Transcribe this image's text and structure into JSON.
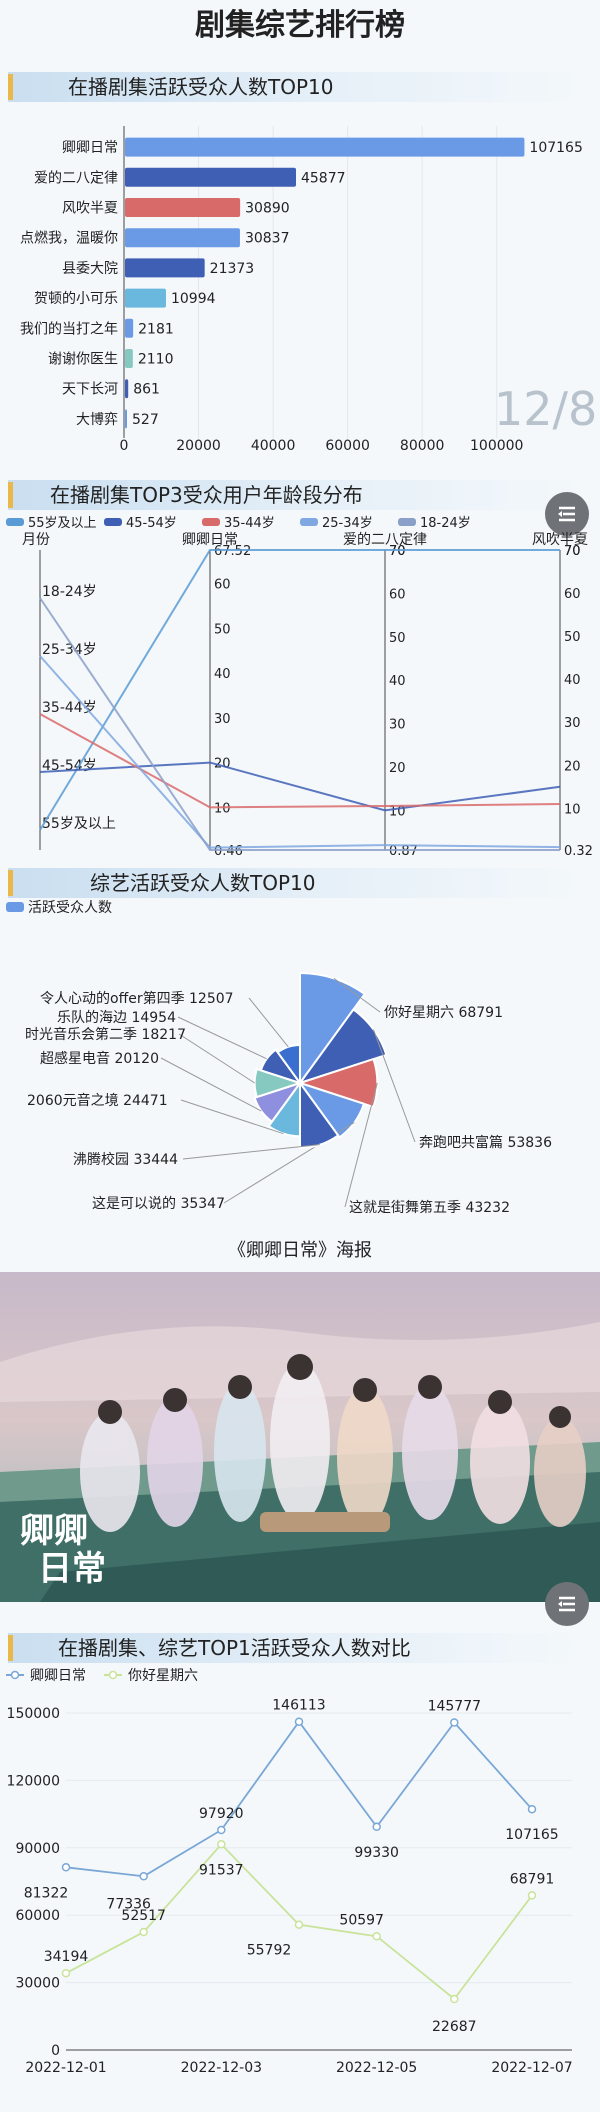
{
  "page": {
    "title": "剧集综艺排行榜",
    "date_stamp": "12/8",
    "poster_caption": "《卿卿日常》海报",
    "poster_text": "卿卿日常"
  },
  "sections": {
    "s1": "在播剧集活跃受众人数TOP10",
    "s2": "在播剧集TOP3受众用户年龄段分布",
    "s3": "综艺活跃受众人数TOP10",
    "s4": "在播剧集、综艺TOP1活跃受众人数对比"
  },
  "colors": {
    "blue": "#6a9ae6",
    "navy": "#3f5fb5",
    "red": "#d96a6a",
    "sky": "#6bb8de",
    "teal": "#86c9c1"
  },
  "icons": [
    "menu-icon"
  ],
  "chart_data": [
    {
      "type": "bar",
      "orientation": "horizontal",
      "title": "在播剧集活跃受众人数TOP10",
      "categories": [
        "卿卿日常",
        "爱的二八定律",
        "风吹半夏",
        "点燃我，温暖你",
        "县委大院",
        "贺顿的小可乐",
        "我们的当打之年",
        "谢谢你医生",
        "天下长河",
        "大博弈"
      ],
      "values": [
        107165,
        45877,
        30890,
        30837,
        21373,
        10994,
        2181,
        2110,
        861,
        527
      ],
      "bar_colors": [
        "#6a9ae6",
        "#3f5fb5",
        "#d96a6a",
        "#6a9ae6",
        "#3f5fb5",
        "#6bb8de",
        "#6a9ae6",
        "#86c9c1",
        "#3f5fb5",
        "#6a9ae6"
      ],
      "x_ticks": [
        0,
        20000,
        40000,
        60000,
        80000,
        100000
      ],
      "xlim": [
        0,
        110000
      ]
    },
    {
      "type": "line",
      "subtype": "parallel",
      "title": "在播剧集TOP3受众用户年龄段分布",
      "first_axis": {
        "label": "月份",
        "categories": [
          "18-24岁",
          "25-34岁",
          "35-44岁",
          "45-54岁",
          "55岁及以上"
        ]
      },
      "axes": [
        {
          "name": "卿卿日常",
          "ticks": [
            10,
            20,
            30,
            40,
            50,
            60
          ],
          "max_label": "67.52",
          "min_label": "0.46",
          "range": [
            0.46,
            67.52
          ]
        },
        {
          "name": "爱的二八定律",
          "ticks": [
            10,
            20,
            30,
            40,
            50,
            60,
            70
          ],
          "max_label": "70",
          "min_label": "0.87",
          "range": [
            0.87,
            70
          ]
        },
        {
          "name": "风吹半夏",
          "ticks": [
            10,
            20,
            30,
            40,
            50,
            60,
            70
          ],
          "max_label": "70",
          "min_label": "0.32",
          "range": [
            0.32,
            70
          ]
        }
      ],
      "series": [
        {
          "name": "55岁及以上",
          "color": "#5b9bd5",
          "values": [
            "55岁及以上",
            67.52,
            70,
            70
          ]
        },
        {
          "name": "45-54岁",
          "color": "#3f5fb5",
          "values": [
            "45-54岁",
            20,
            10,
            15
          ]
        },
        {
          "name": "35-44岁",
          "color": "#d96a6a",
          "values": [
            "35-44岁",
            10,
            11,
            11
          ]
        },
        {
          "name": "25-34岁",
          "color": "#7fa8e0",
          "values": [
            "25-34岁",
            1,
            2,
            1
          ]
        },
        {
          "name": "18-24岁",
          "color": "#8aa0c8",
          "values": [
            "18-24岁",
            0.46,
            0.87,
            0.32
          ]
        }
      ]
    },
    {
      "type": "pie",
      "subtype": "rose",
      "title": "综艺活跃受众人数TOP10",
      "legend": [
        "活跃受众人数"
      ],
      "categories": [
        "你好星期六",
        "奔跑吧共富篇",
        "这就是街舞第五季",
        "这是可以说的",
        "沸腾校园",
        "2060元音之境",
        "超感星电音",
        "时光音乐会第二季",
        "乐队的海边",
        "令人心动的offer第四季"
      ],
      "values": [
        68791,
        53836,
        43232,
        35347,
        33444,
        24471,
        20120,
        18217,
        14954,
        12507
      ],
      "colors": [
        "#6a9ae6",
        "#3f5fb5",
        "#d96a6a",
        "#6a9ae6",
        "#3f5fb5",
        "#6bb8de",
        "#8f8fe0",
        "#86c9c1",
        "#3f5fb5",
        "#3a6fd0"
      ]
    },
    {
      "type": "line",
      "title": "在播剧集、综艺TOP1活跃受众人数对比",
      "x": [
        "2022-12-01",
        "2022-12-02",
        "2022-12-03",
        "2022-12-04",
        "2022-12-05",
        "2022-12-06",
        "2022-12-07"
      ],
      "x_tick_labels": [
        "2022-12-01",
        "2022-12-03",
        "2022-12-05",
        "2022-12-07"
      ],
      "y_ticks": [
        0,
        30000,
        60000,
        90000,
        120000,
        150000
      ],
      "ylim": [
        0,
        150000
      ],
      "series": [
        {
          "name": "卿卿日常",
          "color": "#7aa7d6",
          "values": [
            81322,
            77336,
            97920,
            146113,
            99330,
            145777,
            107165
          ]
        },
        {
          "name": "你好星期六",
          "color": "#c9e39a",
          "values": [
            34194,
            52517,
            91537,
            55792,
            50597,
            22687,
            68791
          ]
        }
      ]
    }
  ]
}
